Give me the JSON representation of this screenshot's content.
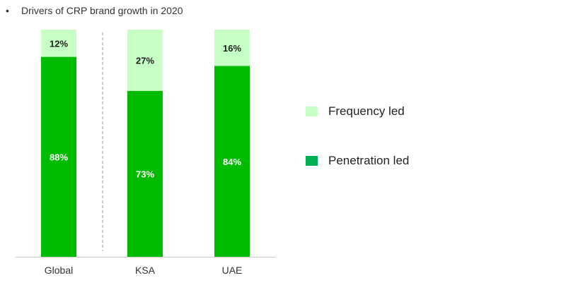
{
  "title": "Drivers of CRP brand growth in 2020",
  "bullet": "•",
  "colors": {
    "frequency": "#c6ffc6",
    "penetration": "#00bb00",
    "legend_penetration": "#00b050",
    "axis": "#cccccc",
    "separator": "#999999",
    "label_dark": "#222222",
    "label_light": "#ffffff"
  },
  "legend": [
    {
      "key": "frequency",
      "label": "Frequency led"
    },
    {
      "key": "penetration",
      "label": "Penetration led"
    }
  ],
  "chart_data": {
    "type": "bar",
    "stacked": true,
    "unit": "%",
    "categories": [
      "Global",
      "KSA",
      "UAE"
    ],
    "series": [
      {
        "name": "Penetration led",
        "values": [
          88,
          73,
          84
        ]
      },
      {
        "name": "Frequency led",
        "values": [
          12,
          27,
          16
        ]
      }
    ],
    "ylim": [
      0,
      100
    ],
    "grid": false,
    "legend_position": "right",
    "separator_after_category": "Global"
  }
}
